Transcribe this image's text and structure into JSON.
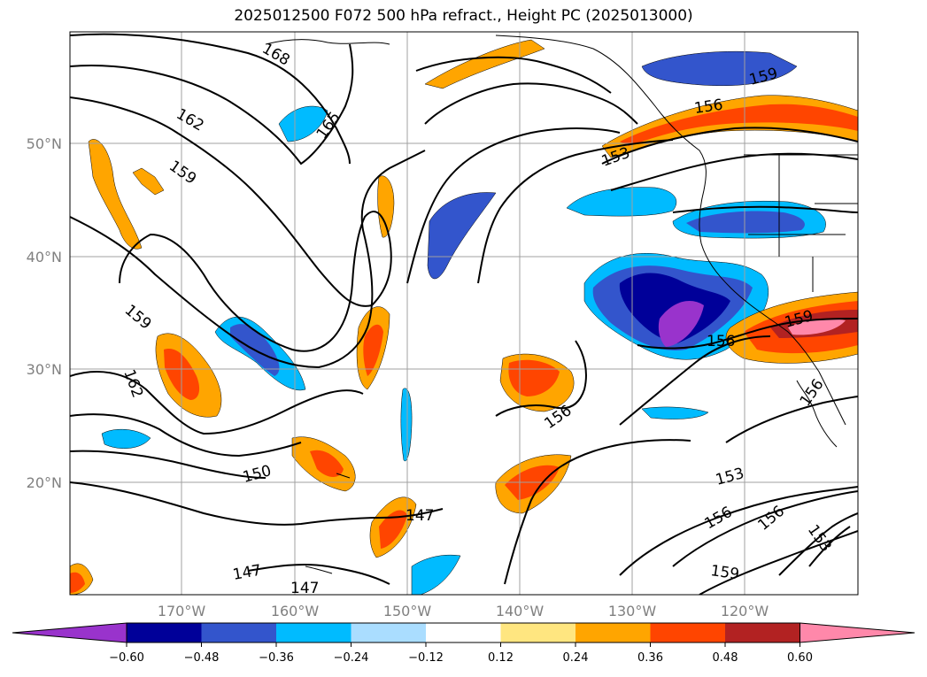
{
  "title": "2025012500 F072 500 hPa refract., Height PC (2025013000)",
  "map": {
    "lat_labels": [
      "50°N",
      "40°N",
      "30°N",
      "20°N"
    ],
    "lon_labels": [
      "170°W",
      "160°W",
      "150°W",
      "140°W",
      "130°W",
      "120°W"
    ],
    "contour_labels": [
      "168",
      "162",
      "165",
      "159",
      "156",
      "153",
      "159",
      "162",
      "150",
      "147",
      "147",
      "147",
      "156",
      "156",
      "159",
      "156",
      "153",
      "156",
      "153",
      "159",
      "159",
      "156"
    ]
  },
  "colorbar": {
    "colors": [
      "#9933cc",
      "#000099",
      "#3355cc",
      "#00bbff",
      "#aaddff",
      "#ffffff",
      "#ffe680",
      "#ffa500",
      "#ff4500",
      "#b22222",
      "#ff88aa"
    ],
    "ticks": [
      "−0.60",
      "−0.48",
      "−0.36",
      "−0.24",
      "−0.12",
      "0.12",
      "0.24",
      "0.36",
      "0.48",
      "0.60"
    ]
  }
}
